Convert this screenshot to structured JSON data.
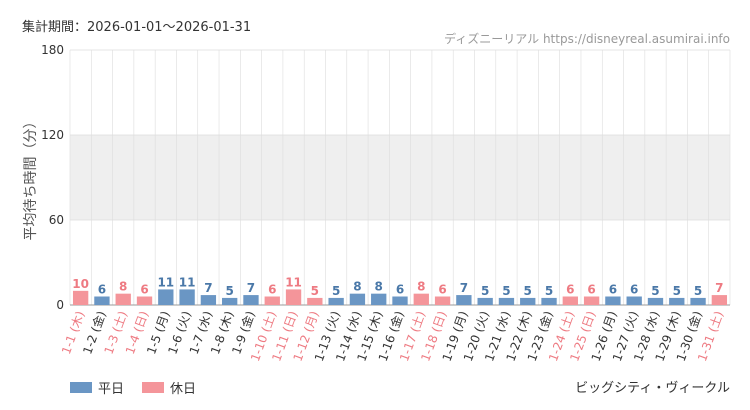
{
  "header": {
    "period_label": "集計期間：2026-01-01～2026-01-31",
    "source": "ディズニーリアル https://disneyreal.asumirai.info"
  },
  "footer": {
    "attraction": "ビッグシティ・ヴィークル"
  },
  "colors": {
    "weekday": "#6a96c4",
    "holiday": "#f4959a",
    "weekday_text": "#4a78a8",
    "holiday_text": "#ee7a82",
    "band": "#efefef",
    "grid": "#dddddd"
  },
  "chart_data": {
    "type": "bar",
    "ylabel": "平均待ち時間（分）",
    "ylim": [
      0,
      180
    ],
    "yticks": [
      0,
      60,
      120,
      180
    ],
    "grid": true,
    "legend_position": "bottom-left",
    "legend": [
      {
        "name": "平日",
        "color": "#6a96c4"
      },
      {
        "name": "休日",
        "color": "#f4959a"
      }
    ],
    "categories": [
      "1-1 (木)",
      "1-2 (金)",
      "1-3 (土)",
      "1-4 (日)",
      "1-5 (月)",
      "1-6 (火)",
      "1-7 (水)",
      "1-8 (木)",
      "1-9 (金)",
      "1-10 (土)",
      "1-11 (日)",
      "1-12 (月)",
      "1-13 (火)",
      "1-14 (水)",
      "1-15 (木)",
      "1-16 (金)",
      "1-17 (土)",
      "1-18 (日)",
      "1-19 (月)",
      "1-20 (火)",
      "1-21 (水)",
      "1-22 (木)",
      "1-23 (金)",
      "1-24 (土)",
      "1-25 (日)",
      "1-26 (月)",
      "1-27 (火)",
      "1-28 (水)",
      "1-29 (木)",
      "1-30 (金)",
      "1-31 (土)"
    ],
    "values": [
      10,
      6,
      8,
      6,
      11,
      11,
      7,
      5,
      7,
      6,
      11,
      5,
      5,
      8,
      8,
      6,
      8,
      6,
      7,
      5,
      5,
      5,
      5,
      6,
      6,
      6,
      6,
      5,
      5,
      5,
      7
    ],
    "day_type": [
      "休日",
      "平日",
      "休日",
      "休日",
      "平日",
      "平日",
      "平日",
      "平日",
      "平日",
      "休日",
      "休日",
      "休日",
      "平日",
      "平日",
      "平日",
      "平日",
      "休日",
      "休日",
      "平日",
      "平日",
      "平日",
      "平日",
      "平日",
      "休日",
      "休日",
      "平日",
      "平日",
      "平日",
      "平日",
      "平日",
      "休日"
    ]
  }
}
